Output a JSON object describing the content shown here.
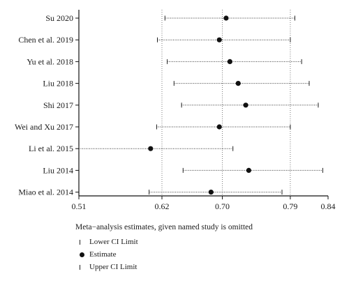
{
  "chart_data": {
    "type": "forest",
    "title": "",
    "xlabel": "",
    "xlim": [
      0.51,
      0.84
    ],
    "xticks": [
      "0.51",
      "0.62",
      "0.70",
      "0.79",
      "0.84"
    ],
    "reference_lines": [
      0.62,
      0.7,
      0.79
    ],
    "studies": [
      {
        "name": "Su 2020",
        "lower": 0.624,
        "estimate": 0.705,
        "upper": 0.796
      },
      {
        "name": "Chen et al. 2019",
        "lower": 0.614,
        "estimate": 0.696,
        "upper": 0.79
      },
      {
        "name": "Yu et al. 2018",
        "lower": 0.627,
        "estimate": 0.71,
        "upper": 0.805
      },
      {
        "name": "Liu 2018",
        "lower": 0.636,
        "estimate": 0.721,
        "upper": 0.815
      },
      {
        "name": "Shi 2017",
        "lower": 0.646,
        "estimate": 0.731,
        "upper": 0.827
      },
      {
        "name": "Wei and Xu 2017",
        "lower": 0.613,
        "estimate": 0.696,
        "upper": 0.79
      },
      {
        "name": "Li et al. 2015",
        "lower": 0.51,
        "estimate": 0.605,
        "upper": 0.714
      },
      {
        "name": "Liu 2014",
        "lower": 0.648,
        "estimate": 0.735,
        "upper": 0.833
      },
      {
        "name": "Miao et al. 2014",
        "lower": 0.603,
        "estimate": 0.685,
        "upper": 0.779
      }
    ],
    "legend": {
      "title": "Meta−analysis estimates, given named study is omitted",
      "lower_label": "Lower CI Limit",
      "estimate_label": "Estimate",
      "upper_label": "Upper CI Limit"
    }
  }
}
